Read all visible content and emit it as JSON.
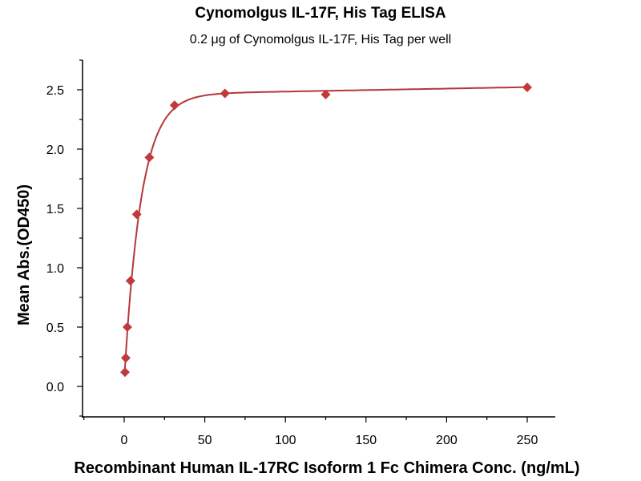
{
  "chart_data": {
    "type": "scatter",
    "title": "Cynomolgus IL-17F, His Tag ELISA",
    "subtitle": "0.2 μg of Cynomolgus IL-17F, His Tag per well",
    "xlabel": "Recombinant Human IL-17RC Isoform 1 Fc Chimera Conc. (ng/mL)",
    "ylabel": "Mean Abs.(OD450)",
    "xlim": [
      -26,
      268
    ],
    "ylim": [
      -0.26,
      2.75
    ],
    "xticks": [
      0,
      50,
      100,
      150,
      200,
      250
    ],
    "xtick_labels": [
      "0",
      "50",
      "100",
      "150",
      "200",
      "250"
    ],
    "yticks": [
      0.0,
      0.5,
      1.0,
      1.5,
      2.0,
      2.5
    ],
    "ytick_labels": [
      "0.0",
      "0.5",
      "1.0",
      "1.5",
      "2.0",
      "2.5"
    ],
    "grid": false,
    "series": [
      {
        "name": "Cynomolgus IL-17F, His Tag",
        "color": "#c0393b",
        "marker": "diamond",
        "fit": "sigmoidal curve",
        "x": [
          0.49,
          0.98,
          1.95,
          3.9,
          7.8,
          15.6,
          31.25,
          62.5,
          125,
          250
        ],
        "y": [
          0.12,
          0.24,
          0.5,
          0.89,
          1.45,
          1.93,
          2.37,
          2.47,
          2.46,
          2.52
        ]
      }
    ]
  }
}
